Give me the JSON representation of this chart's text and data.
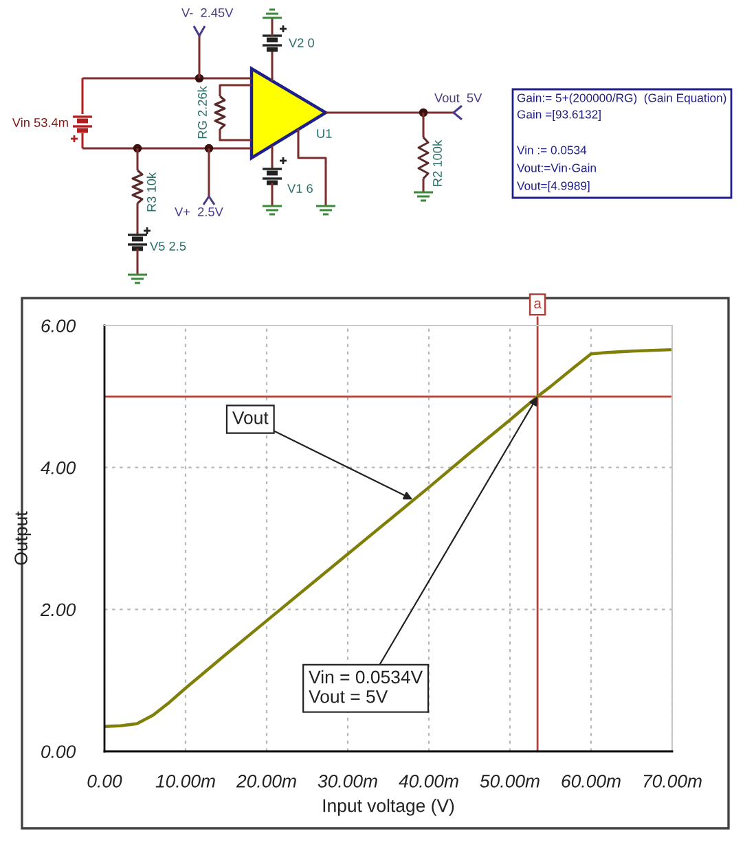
{
  "chart_data": [
    {
      "type": "other",
      "annotations": [
        "V-  2.45V",
        "V2 0",
        "Vin 53.4m",
        "RG 2.26k",
        "U1",
        "V1 6",
        "R3 10k",
        "V+  2.5V",
        "V5 2.5",
        "R2 100k",
        "Vout  5V",
        "Gain:= 5+(200000/RG)  (Gain Equation)",
        "Gain =[93.6132]",
        "Vin := 0.0534",
        "Vout:=Vin·Gain",
        "Vout=[4.9989]"
      ]
    },
    {
      "type": "line",
      "xlabel": "Input voltage (V)",
      "ylabel": "Output",
      "x": [
        0,
        2,
        4,
        6,
        8,
        10,
        15,
        20,
        25,
        30,
        35,
        40,
        45,
        50,
        53.4,
        55,
        58,
        60,
        62,
        65,
        70
      ],
      "series": [
        {
          "color": "#7f7f0a",
          "values": [
            0.35,
            0.36,
            0.39,
            0.51,
            0.69,
            0.89,
            1.37,
            1.84,
            2.31,
            2.78,
            3.25,
            3.72,
            4.2,
            4.67,
            5.0,
            5.14,
            5.42,
            5.6,
            5.62,
            5.64,
            5.66
          ]
        }
      ],
      "xlim": [
        0,
        70
      ],
      "xticks": [
        {
          "value": 0,
          "label": "0.00"
        },
        {
          "value": 10,
          "label": "10.00m"
        },
        {
          "value": 20,
          "label": "20.00m"
        },
        {
          "value": 30,
          "label": "30.00m"
        },
        {
          "value": 40,
          "label": "40.00m"
        },
        {
          "value": 50,
          "label": "50.00m"
        },
        {
          "value": 60,
          "label": "60.00m"
        },
        {
          "value": 70,
          "label": "70.00m"
        }
      ],
      "ylim": [
        0,
        6
      ],
      "yticks": [
        {
          "value": 0,
          "label": "0.00"
        },
        {
          "value": 2,
          "label": "2.00"
        },
        {
          "value": 4,
          "label": "4.00"
        },
        {
          "value": 6,
          "label": "6.00"
        }
      ],
      "grid": true,
      "ref_lines": [
        {
          "axis": "x",
          "value": 53.4,
          "label": "a",
          "color": "#b0403a"
        },
        {
          "axis": "y",
          "value": 5,
          "color": "#b0403a"
        }
      ],
      "annotations": [
        {
          "text": "Vout",
          "x": 38,
          "y": 3.55
        },
        {
          "text": "Vin = 0.0534V\nVout = 5V",
          "x": 53.4,
          "y": 5
        }
      ]
    }
  ]
}
